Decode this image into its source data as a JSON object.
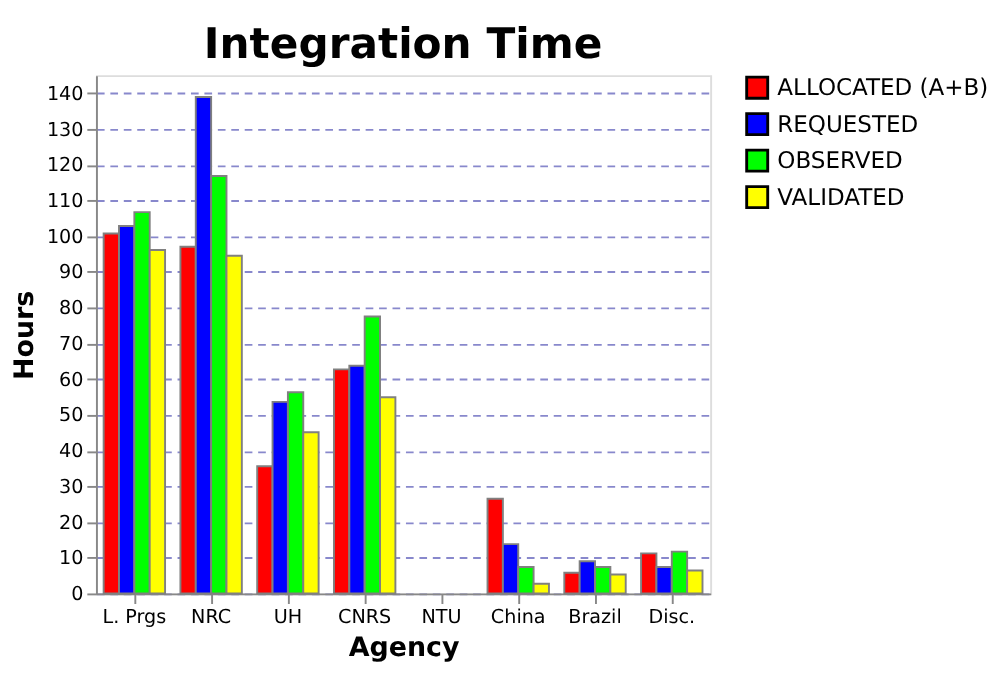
{
  "chart_data": {
    "type": "bar",
    "title": "Integration Time",
    "xlabel": "Agency",
    "ylabel": "Hours",
    "categories": [
      "L. Prgs",
      "NRC",
      "UH",
      "CNRS",
      "NTU",
      "China",
      "Brazil",
      "Disc."
    ],
    "series": [
      {
        "name": "ALLOCATED (A+B)",
        "color": "#ff0000",
        "values": [
          100.7,
          97,
          35.6,
          62.7,
          null,
          26.5,
          5.8,
          11.2
        ]
      },
      {
        "name": "REQUESTED",
        "color": "#0000ff",
        "values": [
          102.8,
          138.9,
          53.6,
          63.7,
          null,
          13.8,
          9.0,
          7.4
        ]
      },
      {
        "name": "OBSERVED",
        "color": "#00ff00",
        "values": [
          106.7,
          116.8,
          56.3,
          77.5,
          null,
          7.4,
          7.4,
          11.7
        ]
      },
      {
        "name": "VALIDATED",
        "color": "#ffff00",
        "values": [
          96.1,
          94.5,
          45.1,
          54.9,
          null,
          2.7,
          5.3,
          6.4
        ]
      }
    ],
    "ylim": [
      0,
      145
    ],
    "yticks": [
      0,
      10,
      20,
      30,
      40,
      50,
      60,
      70,
      80,
      90,
      100,
      110,
      120,
      130,
      140
    ],
    "grid": "y",
    "legend": "right"
  }
}
